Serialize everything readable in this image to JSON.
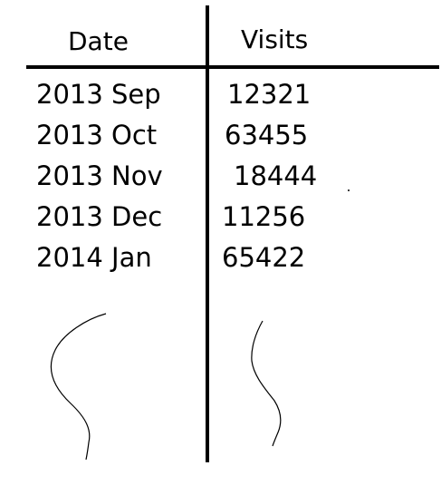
{
  "headers": {
    "date": "Date",
    "visits": "Visits"
  },
  "rows": [
    {
      "date": "2013 Sep",
      "visits": "12321"
    },
    {
      "date": "2013 Oct",
      "visits": "63455"
    },
    {
      "date": "2013 Nov",
      "visits": "18444"
    },
    {
      "date": "2013 Dec",
      "visits": "11256"
    },
    {
      "date": "2014 Jan",
      "visits": "65422"
    }
  ],
  "colors": {
    "ink": "#000000",
    "background": "#ffffff"
  }
}
